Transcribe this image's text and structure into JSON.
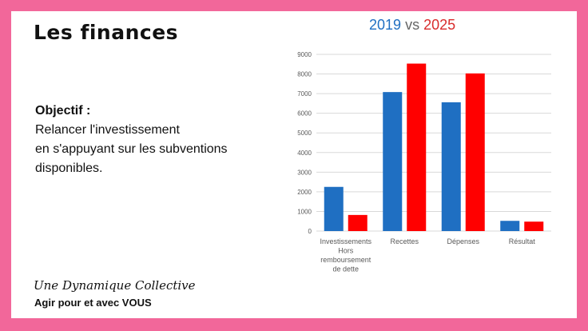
{
  "slide": {
    "title": "Les finances",
    "objective_heading": "Objectif :",
    "objective_lines": [
      "Relancer l'investissement",
      "en s'appuyant sur les subventions",
      "disponibles."
    ],
    "brand_script": "Une Dynamique Collective",
    "brand_tagline": "Agir pour et avec VOUS"
  },
  "colors": {
    "background": "#f2679a",
    "series_2019": "#1f6fc2",
    "series_2025": "#ff0000"
  },
  "chart_title": {
    "part1": "2019",
    "part2": "vs",
    "part3": "2025"
  },
  "chart_data": {
    "type": "bar",
    "categories": [
      [
        "Investissements",
        "Hors",
        "remboursement",
        "de dette"
      ],
      [
        "Recettes"
      ],
      [
        "Dépenses"
      ],
      [
        "Résultat"
      ]
    ],
    "series": [
      {
        "values": [
          2250,
          7080,
          6560,
          520
        ]
      },
      {
        "values": [
          820,
          8530,
          8030,
          480
        ]
      }
    ],
    "ylim": [
      0,
      9000
    ],
    "yticks": [
      0,
      1000,
      2000,
      3000,
      4000,
      5000,
      6000,
      7000,
      8000,
      9000
    ],
    "grid": true
  }
}
